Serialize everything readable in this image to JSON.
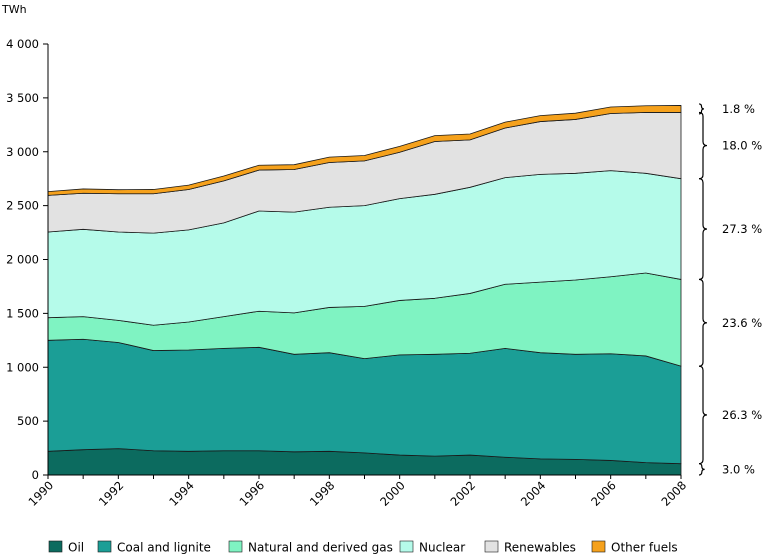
{
  "chart_data": {
    "type": "area",
    "stacked": true,
    "unit_label": "TWh",
    "x": [
      1990,
      1991,
      1992,
      1993,
      1994,
      1995,
      1996,
      1997,
      1998,
      1999,
      2000,
      2001,
      2002,
      2003,
      2004,
      2005,
      2006,
      2007,
      2008
    ],
    "x_tick_labels": [
      "1990",
      "1992",
      "1994",
      "1996",
      "1998",
      "2000",
      "2002",
      "2004",
      "2006",
      "2008"
    ],
    "ylim": [
      0,
      4000
    ],
    "y_tick_values": [
      0,
      500,
      1000,
      1500,
      2000,
      2500,
      3000,
      3500,
      4000
    ],
    "y_tick_labels": [
      "0",
      "500",
      "1 000",
      "1 500",
      "2 000",
      "2 500",
      "3 000",
      "3 500",
      "4 000"
    ],
    "grid": false,
    "legend_position": "bottom",
    "series": [
      {
        "name": "Oil",
        "color": "#0c6b5f",
        "values": [
          220,
          235,
          245,
          225,
          220,
          225,
          225,
          215,
          220,
          205,
          185,
          175,
          185,
          165,
          150,
          145,
          135,
          115,
          105
        ]
      },
      {
        "name": "Coal and lignite",
        "color": "#1b9e96",
        "values": [
          1030,
          1025,
          985,
          930,
          940,
          950,
          960,
          905,
          915,
          875,
          930,
          945,
          945,
          1010,
          985,
          975,
          990,
          990,
          905
        ]
      },
      {
        "name": "Natural and derived gas",
        "color": "#7ff3c2",
        "values": [
          210,
          210,
          205,
          235,
          260,
          295,
          335,
          385,
          420,
          485,
          505,
          520,
          555,
          595,
          655,
          690,
          715,
          770,
          805
        ]
      },
      {
        "name": "Nuclear",
        "color": "#b5fbea",
        "values": [
          795,
          810,
          820,
          855,
          855,
          870,
          930,
          935,
          930,
          935,
          945,
          965,
          985,
          990,
          1000,
          990,
          985,
          925,
          935
        ]
      },
      {
        "name": "Renewables",
        "color": "#e2e2e2",
        "values": [
          340,
          335,
          355,
          365,
          375,
          390,
          380,
          395,
          415,
          415,
          430,
          490,
          440,
          460,
          490,
          500,
          530,
          565,
          615
        ]
      },
      {
        "name": "Other fuels",
        "color": "#f5a11c",
        "values": [
          35,
          40,
          38,
          40,
          40,
          45,
          45,
          45,
          50,
          50,
          55,
          55,
          55,
          55,
          55,
          58,
          60,
          62,
          65
        ]
      }
    ],
    "share_labels": [
      {
        "series": "Other fuels",
        "label": "1.8 %"
      },
      {
        "series": "Renewables",
        "label": "18.0 %"
      },
      {
        "series": "Nuclear",
        "label": "27.3 %"
      },
      {
        "series": "Natural and derived gas",
        "label": "23.6 %"
      },
      {
        "series": "Coal and lignite",
        "label": "26.3 %"
      },
      {
        "series": "Oil",
        "label": "3.0 %"
      }
    ]
  }
}
